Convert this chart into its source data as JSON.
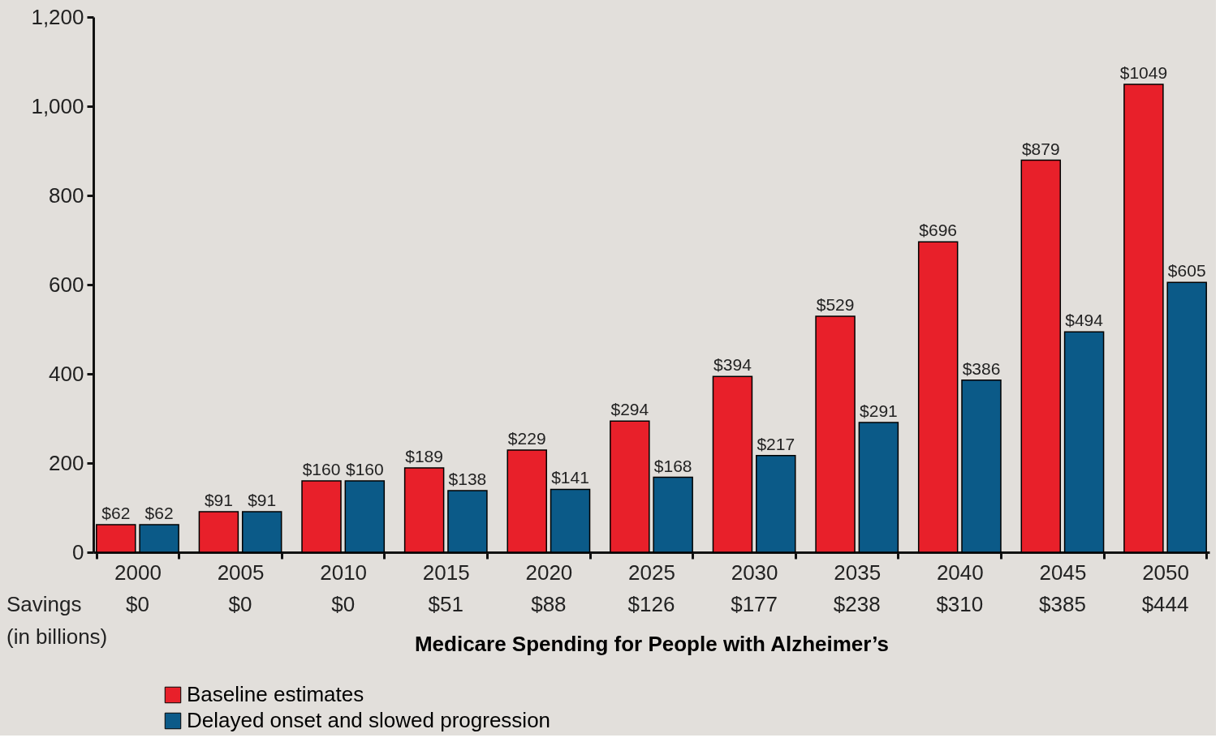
{
  "chart_data": {
    "type": "bar",
    "xlabel": "Medicare Spending for People with Alzheimer’s",
    "categories": [
      "2000",
      "2005",
      "2010",
      "2015",
      "2020",
      "2025",
      "2030",
      "2035",
      "2040",
      "2045",
      "2050"
    ],
    "series": [
      {
        "name": "Baseline estimates",
        "color": "#e8202a",
        "values": [
          62,
          91,
          160,
          189,
          229,
          294,
          394,
          529,
          696,
          879,
          1049
        ],
        "value_labels": [
          "$62",
          "$91",
          "$160",
          "$189",
          "$229",
          "$294",
          "$394",
          "$529",
          "$696",
          "$879",
          "$1049"
        ]
      },
      {
        "name": "Delayed onset and slowed progression",
        "color": "#0b5a88",
        "values": [
          62,
          91,
          160,
          138,
          141,
          168,
          217,
          291,
          386,
          494,
          605
        ],
        "value_labels": [
          "$62",
          "$91",
          "$160",
          "$138",
          "$141",
          "$168",
          "$217",
          "$291",
          "$386",
          "$494",
          "$605"
        ]
      }
    ],
    "ylim": [
      0,
      1200
    ],
    "yticks": [
      0,
      200,
      400,
      600,
      800,
      {
        "value": 1000,
        "label": "1,000"
      },
      {
        "value": 1200,
        "label": "1,200"
      }
    ],
    "legend": "bottom left",
    "annotations": [
      "Savings\n(in billions)",
      "$0",
      "$0",
      "$0",
      "$51",
      "$88",
      "$126",
      "$177",
      "$238",
      "$310",
      "$385",
      "$444"
    ]
  }
}
